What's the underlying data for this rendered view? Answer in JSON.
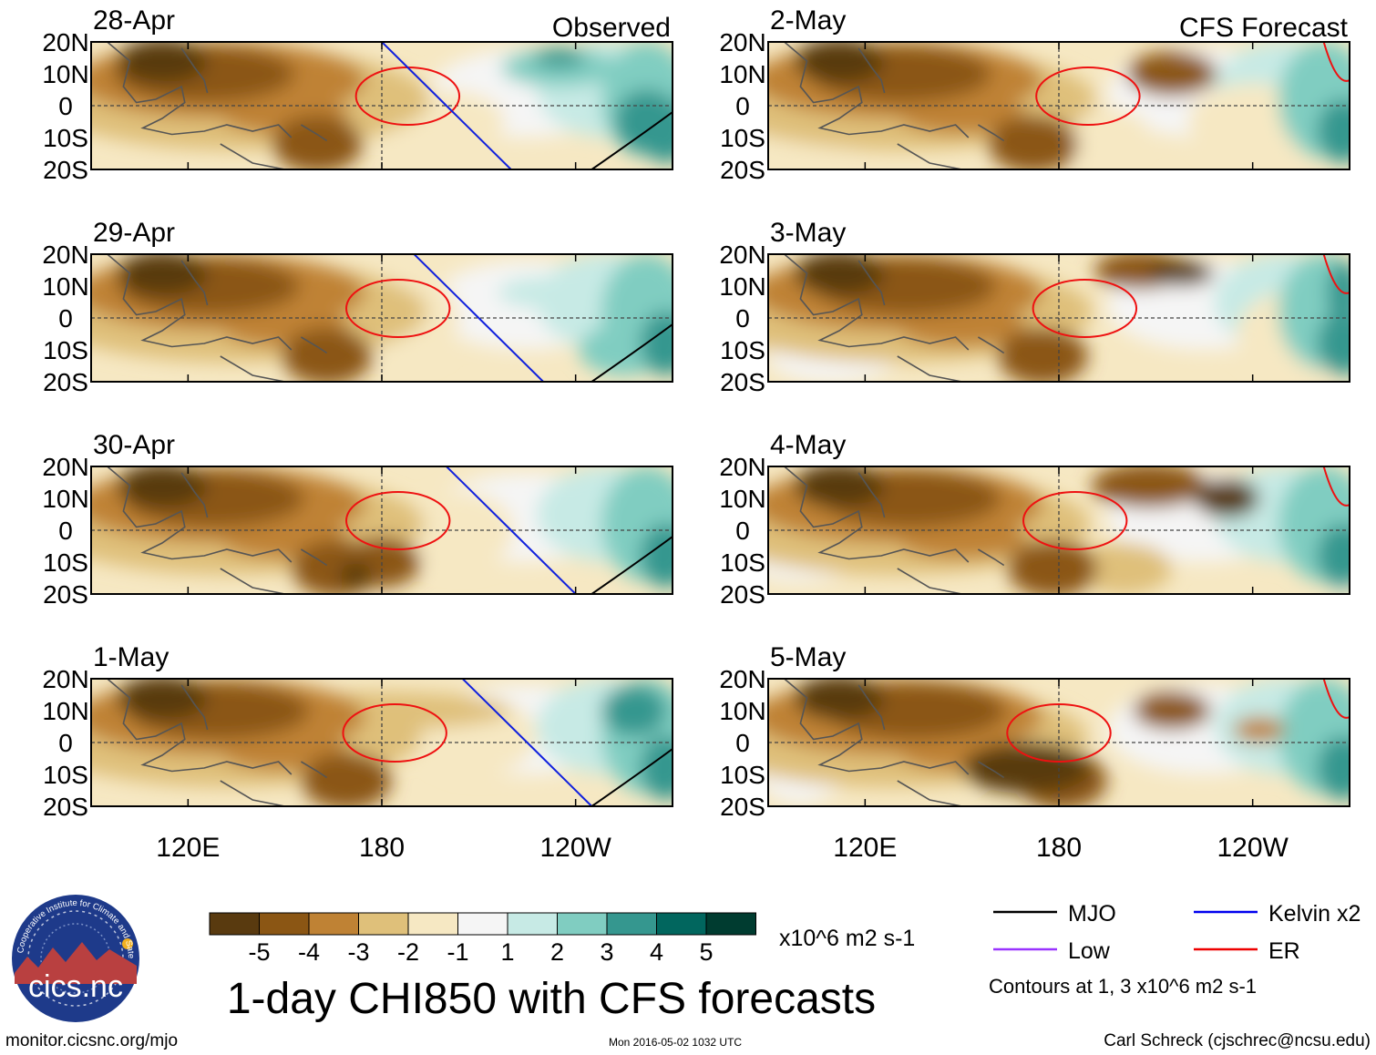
{
  "chart_data": {
    "type": "heatmap",
    "title": "1-day CHI850 with CFS forecasts",
    "columns": [
      {
        "header": "Observed",
        "dates": [
          "28-Apr",
          "29-Apr",
          "30-Apr",
          "1-May"
        ]
      },
      {
        "header": "CFS Forecast",
        "dates": [
          "2-May",
          "3-May",
          "4-May",
          "5-May"
        ]
      }
    ],
    "y_ticks": [
      "20N",
      "10N",
      "0",
      "10S",
      "20S"
    ],
    "x_ticks": [
      "120E",
      "180",
      "120W"
    ],
    "colorbar": {
      "levels": [
        "-5",
        "-4",
        "-3",
        "-2",
        "-1",
        "1",
        "2",
        "3",
        "4",
        "5"
      ],
      "colors": [
        "#593a0f",
        "#8b5614",
        "#bf8234",
        "#dfc07a",
        "#f6e8c3",
        "#f5f5f5",
        "#c7eae5",
        "#80cdc1",
        "#35978f",
        "#01665e",
        "#003c30"
      ],
      "units": "x10^6 m2 s-1"
    },
    "legend": [
      {
        "label": "MJO",
        "color": "#000000"
      },
      {
        "label": "Kelvin x2",
        "color": "#0000ee"
      },
      {
        "label": "Low",
        "color": "#9933ff"
      },
      {
        "label": "ER",
        "color": "#ee0000"
      }
    ],
    "contour_note": "Contours at 1, 3 x10^6 m2 s-1"
  },
  "footer": {
    "left": "monitor.cicsnc.org/mjo",
    "center": "Mon 2016-05-02 1032 UTC",
    "right": "Carl Schreck (cjschrec@ncsu.edu)"
  },
  "logo": {
    "main": "cics.nc",
    "ring": "Cooperative Institute for Climate and Satellites"
  }
}
